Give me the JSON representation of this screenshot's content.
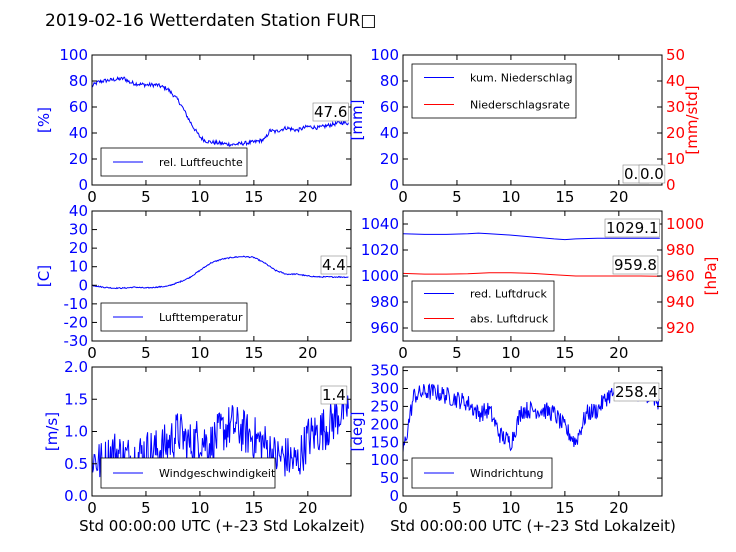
{
  "page_title": "2019-02-16 Wetterdaten Station FUR□",
  "x_axis_label": "Std 00:00:00 UTC (+-23 Std Lokalzeit)",
  "colors": {
    "primary": "#0000ff",
    "secondary": "#ff0000",
    "axis": "#000000"
  },
  "chart_data": [
    {
      "type": "line",
      "ylabel": "[%]",
      "xlim": [
        0,
        24
      ],
      "ylim": [
        0,
        100
      ],
      "x_ticks": [
        0,
        5,
        10,
        15,
        20
      ],
      "y_ticks": [
        0,
        20,
        40,
        60,
        80,
        100
      ],
      "legend_placement": "lower-left",
      "last_value": "47.6",
      "series": [
        {
          "name": "rel. Luftfeuchte",
          "color": "#0000ff",
          "noise": 1.5,
          "x": [
            0,
            0.5,
            1,
            2,
            3,
            3.5,
            4,
            5,
            6,
            7,
            8,
            8.5,
            9,
            9.5,
            10,
            10.5,
            11,
            12,
            13,
            14,
            15,
            16,
            16.5,
            17,
            18,
            19,
            20,
            21,
            22,
            23,
            23.8
          ],
          "y": [
            76,
            79,
            80,
            81,
            82,
            79,
            78,
            77,
            77,
            74,
            65,
            58,
            50,
            43,
            37,
            34,
            33,
            32,
            31,
            32,
            33,
            35,
            42,
            41,
            44,
            42,
            45,
            44,
            46,
            48,
            47.6
          ]
        }
      ]
    },
    {
      "type": "line",
      "ylabel": "[mm]",
      "ylabel_right": "[mm/std]",
      "xlim": [
        0,
        24
      ],
      "ylim": [
        0,
        100
      ],
      "ylim_right": [
        0,
        50
      ],
      "x_ticks": [
        0,
        5,
        10,
        15,
        20
      ],
      "y_ticks": [
        0,
        20,
        40,
        60,
        80,
        100
      ],
      "y_ticks_right": [
        0,
        10,
        20,
        30,
        40,
        50
      ],
      "legend_placement": "upper-left",
      "last_value": "0.0",
      "last_value_2": "0.0",
      "series": [
        {
          "name": "kum. Niederschlag",
          "color": "#0000ff",
          "noise": 0,
          "x": [
            0,
            24
          ],
          "y": [
            0,
            0
          ]
        },
        {
          "name": "Niederschlagsrate",
          "color": "#ff0000",
          "axis": "right",
          "noise": 0,
          "x": [
            0,
            24
          ],
          "y": [
            0,
            0
          ]
        }
      ]
    },
    {
      "type": "line",
      "ylabel": "[C]",
      "xlim": [
        0,
        24
      ],
      "ylim": [
        -30,
        40
      ],
      "x_ticks": [
        0,
        5,
        10,
        15,
        20
      ],
      "y_ticks": [
        -30,
        -20,
        -10,
        0,
        10,
        20,
        30,
        40
      ],
      "legend_placement": "lower-left",
      "last_value": "4.4",
      "series": [
        {
          "name": "Lufttemperatur",
          "color": "#0000ff",
          "noise": 0.3,
          "x": [
            0,
            1,
            2,
            3,
            4,
            5,
            6,
            7,
            8,
            9,
            10,
            11,
            12,
            13,
            14,
            15,
            16,
            17,
            18,
            19,
            20,
            21,
            22,
            23,
            23.8
          ],
          "y": [
            0,
            -1,
            -1.5,
            -1.5,
            -1,
            -1.5,
            -1,
            -0.5,
            1.5,
            4,
            8,
            12,
            14,
            15,
            15.5,
            15,
            12,
            8,
            6,
            6,
            5,
            4.5,
            4.5,
            4.5,
            4.4
          ]
        }
      ]
    },
    {
      "type": "line",
      "ylabel_right": "[hPa]",
      "xlim": [
        0,
        24
      ],
      "ylim": [
        950,
        1050
      ],
      "ylim_right": [
        910,
        1010
      ],
      "x_ticks": [
        0,
        5,
        10,
        15,
        20
      ],
      "y_ticks": [
        960,
        980,
        1000,
        1020,
        1040
      ],
      "y_ticks_right": [
        920,
        940,
        960,
        980,
        1000
      ],
      "legend_placement": "lower-left",
      "last_value": "1029.1",
      "last_value_2": "959.8",
      "series": [
        {
          "name": "red. Luftdruck",
          "color": "#0000ff",
          "noise": 0,
          "x": [
            0,
            2,
            4,
            6,
            7,
            8,
            10,
            12,
            14,
            15,
            16,
            18,
            20,
            22,
            23.8
          ],
          "y": [
            1032.5,
            1032,
            1032,
            1032.5,
            1033,
            1032.5,
            1031.5,
            1030,
            1028.5,
            1028,
            1028.5,
            1029,
            1029,
            1029,
            1029.1
          ]
        },
        {
          "name": "abs. Luftdruck",
          "color": "#ff0000",
          "axis": "right",
          "noise": 0,
          "x": [
            0,
            2,
            4,
            6,
            8,
            10,
            12,
            14,
            16,
            18,
            20,
            22,
            23.8
          ],
          "y": [
            962,
            961.5,
            961.5,
            961.8,
            962.5,
            962.5,
            962,
            961,
            960,
            960,
            960,
            960,
            959.8
          ]
        }
      ]
    },
    {
      "type": "line",
      "ylabel": "[m/s]",
      "xlim": [
        0,
        24
      ],
      "ylim": [
        0,
        2
      ],
      "x_ticks": [
        0,
        5,
        10,
        15,
        20
      ],
      "y_ticks": [
        0.0,
        0.5,
        1.0,
        1.5,
        2.0
      ],
      "legend_placement": "lower-left",
      "last_value": "1.4",
      "series": [
        {
          "name": "Windgeschwindigkeit",
          "color": "#0000ff",
          "noise": 0.35,
          "clip": [
            0.1,
            1.85
          ],
          "x": [
            0,
            1,
            2,
            3,
            4,
            5,
            6,
            7,
            8,
            9,
            10,
            11,
            12,
            13,
            14,
            15,
            16,
            17,
            18,
            19,
            20,
            21,
            22,
            23,
            23.8
          ],
          "y": [
            0.6,
            0.5,
            0.7,
            0.6,
            0.6,
            0.7,
            0.7,
            0.8,
            1.0,
            0.8,
            0.9,
            0.8,
            1.0,
            1.1,
            1.0,
            0.9,
            0.8,
            0.6,
            0.6,
            0.5,
            0.9,
            1.0,
            1.1,
            1.3,
            1.4
          ]
        }
      ]
    },
    {
      "type": "line",
      "ylabel": "[deg]",
      "xlim": [
        0,
        24
      ],
      "ylim": [
        0,
        360
      ],
      "x_ticks": [
        0,
        5,
        10,
        15,
        20
      ],
      "y_ticks": [
        0,
        50,
        100,
        150,
        200,
        250,
        300,
        350
      ],
      "legend_placement": "lower-left",
      "last_value": "258.4",
      "series": [
        {
          "name": "Windrichtung",
          "color": "#0000ff",
          "noise": 25,
          "clip": [
            20,
            340
          ],
          "x": [
            0,
            1,
            2,
            3,
            4,
            5,
            6,
            7,
            8,
            9,
            10,
            11,
            12,
            13,
            14,
            15,
            16,
            17,
            18,
            19,
            20,
            21,
            22,
            23,
            23.8
          ],
          "y": [
            120,
            280,
            290,
            290,
            280,
            270,
            260,
            230,
            240,
            170,
            150,
            240,
            240,
            240,
            230,
            190,
            150,
            230,
            240,
            280,
            290,
            280,
            290,
            280,
            258.4
          ]
        }
      ]
    }
  ]
}
